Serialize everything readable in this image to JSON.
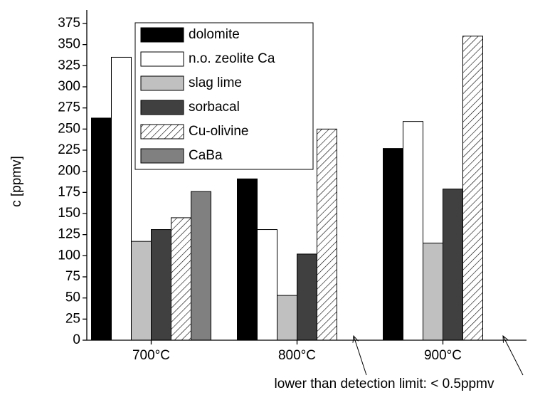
{
  "chart_data": {
    "type": "bar",
    "y_label": "c [ppmv]",
    "categories": [
      "700°C",
      "800°C",
      "900°C"
    ],
    "series": [
      {
        "name": "dolomite",
        "color": "#000000",
        "values": [
          263,
          191,
          227
        ]
      },
      {
        "name": "n.o. zeolite Ca",
        "color": "#ffffff",
        "values": [
          335,
          131,
          259
        ]
      },
      {
        "name": "slag lime",
        "color": "#c0c0c0",
        "values": [
          117,
          53,
          115
        ]
      },
      {
        "name": "sorbacal",
        "color": "#404040",
        "values": [
          131,
          102,
          179
        ]
      },
      {
        "name": "Cu-olivine",
        "color": "#ffffff",
        "hatch": true,
        "values": [
          145,
          250,
          360
        ]
      },
      {
        "name": "CaBa",
        "color": "#808080",
        "values": [
          176,
          null,
          null
        ]
      }
    ],
    "ylim": [
      0,
      391
    ],
    "yticks": [
      0,
      25,
      50,
      75,
      100,
      125,
      150,
      175,
      200,
      225,
      250,
      275,
      300,
      325,
      350,
      375
    ],
    "annotation": "lower than detection limit: < 0.5ppmv"
  }
}
